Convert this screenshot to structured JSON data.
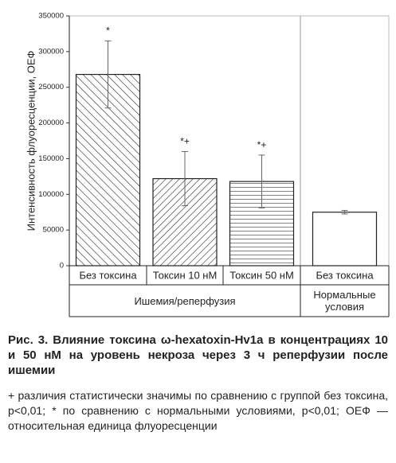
{
  "chart_data": {
    "type": "bar",
    "y_label": "Интенсивность флуоресценции, ОЕФ",
    "categories": [
      "Без токсина",
      "Токсин 10 нМ",
      "Токсин 50 нМ",
      "Без токсина"
    ],
    "values": [
      268000,
      122000,
      118000,
      75000
    ],
    "errors": [
      47000,
      38000,
      37000,
      2500
    ],
    "annotations": [
      "*",
      "*+",
      "*+",
      null
    ],
    "hatches": [
      "backslash",
      "slash",
      "horizontal",
      "none"
    ],
    "groups": [
      "Ишемия/реперфузия",
      "Нормальные условия"
    ],
    "ylim": [
      0,
      350000
    ],
    "yticks": [
      0,
      50000,
      100000,
      150000,
      200000,
      250000,
      300000,
      350000
    ]
  },
  "caption": {
    "title": "Рис. 3. Влияние токсина ω-hexatoxin-Hv1a в концентрациях 10 и 50 нМ на уровень некроза через 3 ч реперфузии после ишемии",
    "note": "+ различия статистически значимы по сравнению с группой без токсина, p<0,01; * по сравнению с нормальными условиями, p<0,01; ОЕФ — относительная единица флуоресценции"
  }
}
